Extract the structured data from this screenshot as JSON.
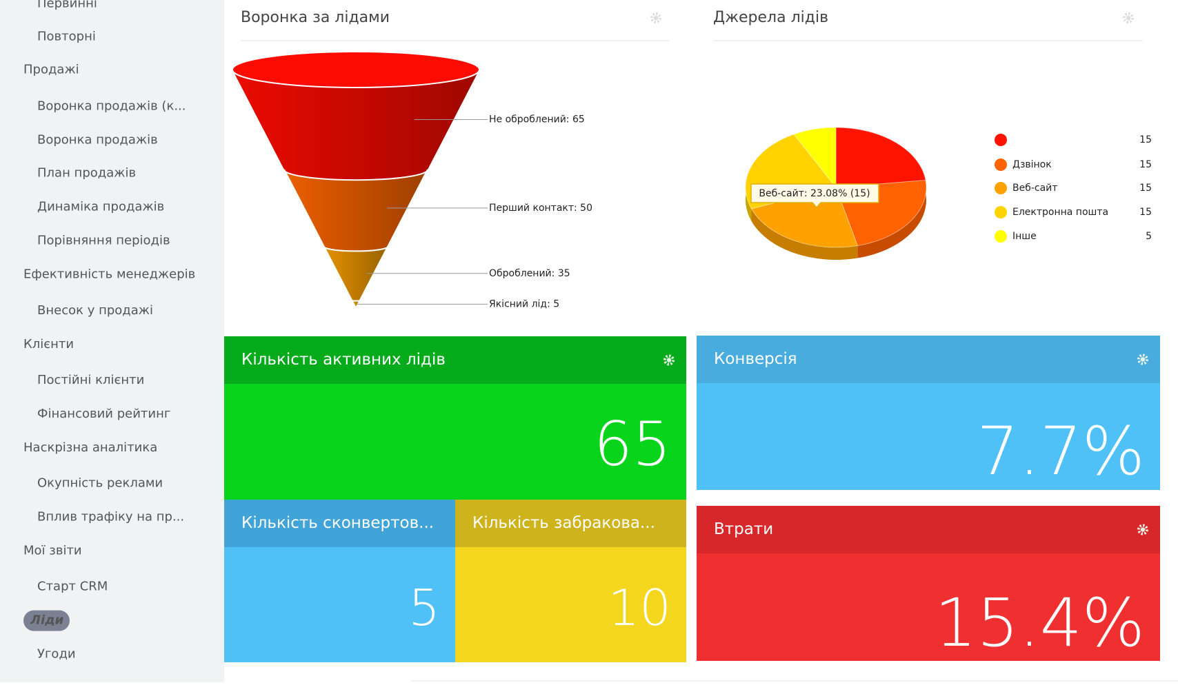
{
  "sidebar": {
    "items": [
      "Первинні",
      "Повторні",
      "Продажі",
      "Воронка продажів (к...",
      "Воронка продажів",
      "План продажів",
      "Динаміка продажів",
      "Порівняння періодів",
      "Ефективність менеджерів",
      "Внесок у продажі",
      "Клієнти",
      "Постійні клієнти",
      "Фінансовий рейтинг",
      "Наскрізна аналітика",
      "Окупність реклами",
      "Вплив трафіку на пр...",
      "Мої звіти",
      "Старт CRM",
      "Ліди",
      "Угоди"
    ]
  },
  "chart_data": [
    {
      "type": "funnel",
      "title": "Воронка за лідами",
      "values": [
        65,
        50,
        35,
        5
      ],
      "value_labels": [
        "Не оброблений: 65",
        "Перший контакт: 50",
        "Оброблений: 35",
        "Якісний лід: 5"
      ],
      "colors": [
        "#e00a00",
        "#e05a00",
        "#d98a00",
        "#e0a000"
      ]
    },
    {
      "type": "pie",
      "title": "Джерела лідів",
      "categories": [
        null,
        "Дзвінок",
        "Веб-сайт",
        "Електронна пошта",
        "Інше"
      ],
      "values": [
        15,
        15,
        15,
        15,
        5
      ],
      "colors": [
        "#ff1400",
        "#ff6200",
        "#ffa200",
        "#ffd200",
        "#ffff00"
      ],
      "legend": "right",
      "tooltip": "Веб-сайт: 23.08% (15)"
    }
  ],
  "tiles": [
    {
      "title": "Кількість активних лідів",
      "value": 65
    },
    {
      "title": "Кількість сконвертов...",
      "value": 5
    },
    {
      "title": "Кількість забракова...",
      "value": 10
    },
    {
      "title": "Конверсія",
      "value": "7.7%"
    },
    {
      "title": "Втрати",
      "value": "15.4%"
    }
  ]
}
